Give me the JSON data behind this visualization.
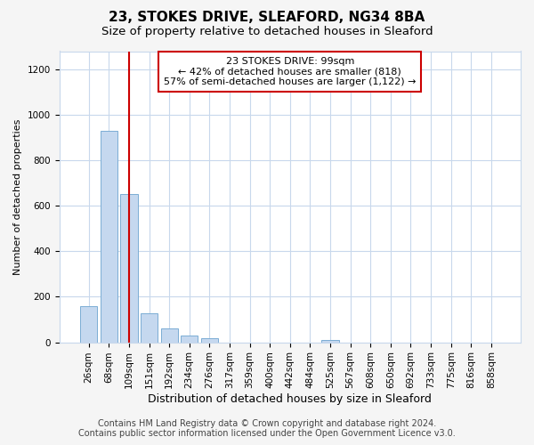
{
  "title1": "23, STOKES DRIVE, SLEAFORD, NG34 8BA",
  "title2": "Size of property relative to detached houses in Sleaford",
  "xlabel": "Distribution of detached houses by size in Sleaford",
  "ylabel": "Number of detached properties",
  "categories": [
    "26sqm",
    "68sqm",
    "109sqm",
    "151sqm",
    "192sqm",
    "234sqm",
    "276sqm",
    "317sqm",
    "359sqm",
    "400sqm",
    "442sqm",
    "484sqm",
    "525sqm",
    "567sqm",
    "608sqm",
    "650sqm",
    "692sqm",
    "733sqm",
    "775sqm",
    "816sqm",
    "858sqm"
  ],
  "values": [
    160,
    930,
    650,
    128,
    62,
    30,
    18,
    0,
    0,
    0,
    0,
    0,
    12,
    0,
    0,
    0,
    0,
    0,
    0,
    0,
    0
  ],
  "bar_color": "#c5d8ef",
  "bar_edge_color": "#7badd4",
  "vline_x_idx": 2,
  "vline_color": "#cc0000",
  "annotation_text": "23 STOKES DRIVE: 99sqm\n← 42% of detached houses are smaller (818)\n57% of semi-detached houses are larger (1,122) →",
  "annotation_box_color": "#ffffff",
  "annotation_box_edge": "#cc0000",
  "ylim": [
    0,
    1280
  ],
  "yticks": [
    0,
    200,
    400,
    600,
    800,
    1000,
    1200
  ],
  "footer1": "Contains HM Land Registry data © Crown copyright and database right 2024.",
  "footer2": "Contains public sector information licensed under the Open Government Licence v3.0.",
  "background_color": "#f5f5f5",
  "plot_bg_color": "#ffffff",
  "grid_color": "#c8d8ec",
  "title1_fontsize": 11,
  "title2_fontsize": 9.5,
  "xlabel_fontsize": 9,
  "ylabel_fontsize": 8,
  "tick_fontsize": 7.5,
  "annot_fontsize": 8,
  "footer_fontsize": 7
}
